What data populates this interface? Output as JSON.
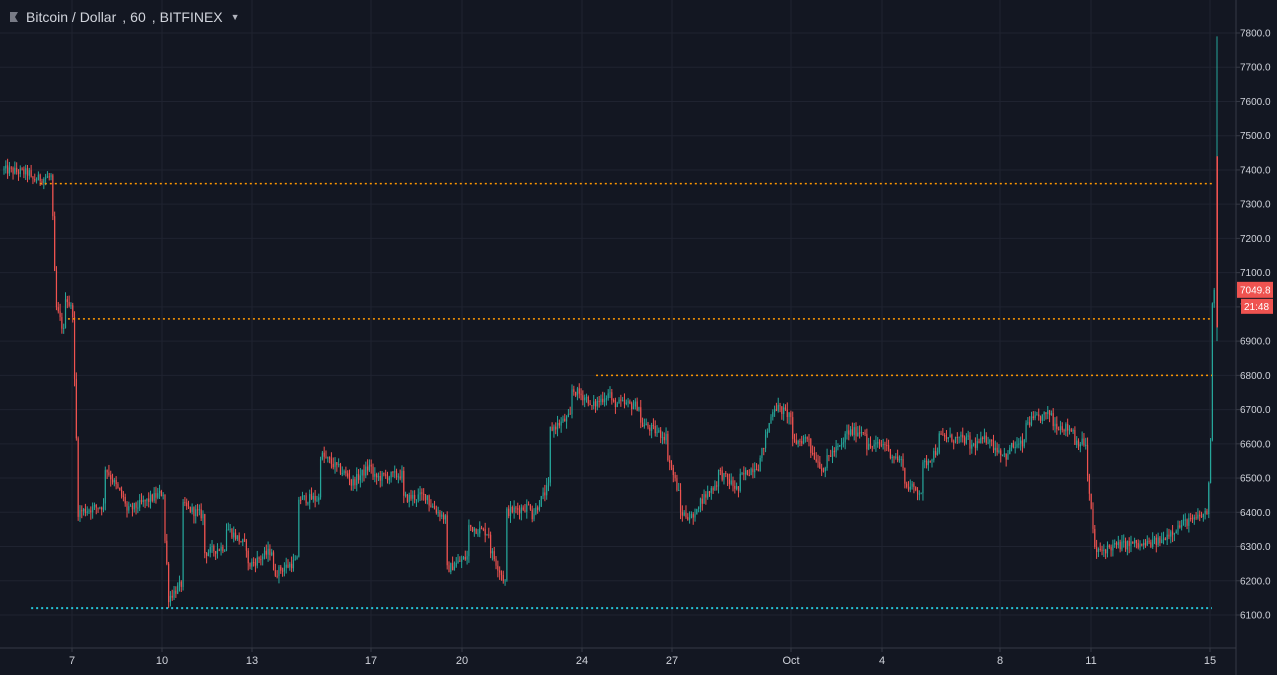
{
  "header": {
    "symbol": "Bitcoin / Dollar",
    "interval": "60",
    "exchange": "BITFINEX"
  },
  "colors": {
    "background": "#131722",
    "grid": "#1f2330",
    "up": "#26a69a",
    "down": "#ef5350",
    "level_orange": "#ff9800",
    "level_teal": "#26c6da",
    "price_tag": "#ef5350"
  },
  "chart_data": {
    "type": "candlestick",
    "title": "Bitcoin / Dollar, 60, BITFINEX",
    "ylim": [
      6040,
      7840
    ],
    "y_ticks": [
      "6100.0",
      "6200.0",
      "6300.0",
      "6400.0",
      "6500.0",
      "6600.0",
      "6700.0",
      "6800.0",
      "6900.0",
      "7000.0",
      "7100.0",
      "7200.0",
      "7300.0",
      "7400.0",
      "7500.0",
      "7600.0",
      "7700.0",
      "7800.0"
    ],
    "x_ticks": [
      "7",
      "10",
      "13",
      "17",
      "20",
      "24",
      "27",
      "Oct",
      "4",
      "8",
      "11",
      "15"
    ],
    "last_price": "7049.8",
    "countdown": "21:48",
    "price_path": [
      [
        0,
        7360,
        7400
      ],
      [
        0.6,
        7390,
        7370
      ],
      [
        1.1,
        7380,
        7360
      ],
      [
        1.2,
        6980,
        7000
      ],
      [
        1.4,
        6920,
        7040
      ],
      [
        1.6,
        6980,
        6900
      ],
      [
        1.7,
        6500,
        6400
      ],
      [
        2.3,
        6420,
        6540
      ],
      [
        2.8,
        6430,
        6400
      ],
      [
        3.7,
        6460,
        6350
      ],
      [
        3.8,
        6180,
        6150
      ],
      [
        4.1,
        6190,
        6420
      ],
      [
        4.6,
        6390,
        6280
      ],
      [
        5.1,
        6300,
        6360
      ],
      [
        5.6,
        6300,
        6240
      ],
      [
        6.2,
        6290,
        6220
      ],
      [
        6.8,
        6260,
        6440
      ],
      [
        7.3,
        6440,
        6570
      ],
      [
        8.0,
        6500,
        6480
      ],
      [
        8.5,
        6540,
        6500
      ],
      [
        9.2,
        6510,
        6440
      ],
      [
        9.8,
        6450,
        6430
      ],
      [
        10.2,
        6380,
        6230
      ],
      [
        10.7,
        6270,
        6360
      ],
      [
        11.2,
        6340,
        6300
      ],
      [
        11.6,
        6190,
        6400
      ],
      [
        12.2,
        6420,
        6390
      ],
      [
        12.6,
        6480,
        6640
      ],
      [
        13.1,
        6680,
        6760
      ],
      [
        13.5,
        6730,
        6700
      ],
      [
        14.0,
        6750,
        6720
      ],
      [
        14.7,
        6710,
        6660
      ],
      [
        15.3,
        6620,
        6580
      ],
      [
        15.6,
        6450,
        6400
      ],
      [
        16.0,
        6380,
        6420
      ],
      [
        16.5,
        6490,
        6520
      ],
      [
        17.0,
        6460,
        6500
      ],
      [
        17.4,
        6540,
        6520
      ],
      [
        17.8,
        6720,
        6710
      ],
      [
        18.2,
        6680,
        6600
      ],
      [
        18.6,
        6620,
        6590
      ],
      [
        19.0,
        6510,
        6560
      ],
      [
        19.4,
        6600,
        6630
      ],
      [
        19.9,
        6640,
        6590
      ],
      [
        20.4,
        6600,
        6580
      ],
      [
        20.8,
        6540,
        6480
      ],
      [
        21.2,
        6460,
        6530
      ],
      [
        21.6,
        6590,
        6620
      ],
      [
        22.3,
        6610,
        6590
      ],
      [
        22.8,
        6620,
        6600
      ],
      [
        23.2,
        6560,
        6590
      ],
      [
        23.6,
        6600,
        6660
      ],
      [
        24.2,
        6690,
        6660
      ],
      [
        24.7,
        6640,
        6610
      ],
      [
        25.0,
        6600,
        6540
      ],
      [
        25.2,
        6300,
        6280
      ],
      [
        25.6,
        6300,
        6300
      ],
      [
        26.2,
        6310,
        6300
      ],
      [
        26.8,
        6320,
        6330
      ],
      [
        27.4,
        6380,
        6370
      ],
      [
        27.8,
        6400,
        6380
      ],
      [
        27.9,
        6700,
        6950
      ],
      [
        28.0,
        7250,
        7040
      ]
    ],
    "levels": [
      {
        "price": 7360,
        "from": 0.55,
        "color": "orange"
      },
      {
        "price": 6965,
        "from": 1.2,
        "color": "orange"
      },
      {
        "price": 6800,
        "from": 13.4,
        "color": "orange"
      },
      {
        "price": 6120,
        "from": 0.35,
        "color": "teal"
      }
    ]
  }
}
